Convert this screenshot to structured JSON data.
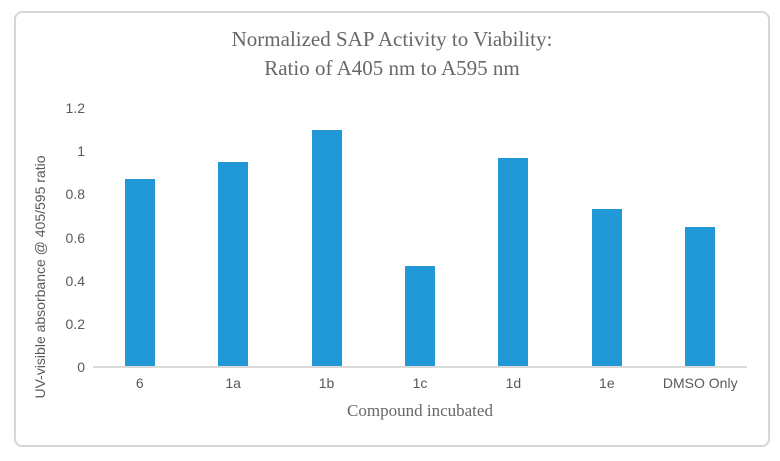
{
  "colors": {
    "bar": "#2199D6",
    "axis-line": "#d9d9d9",
    "tick-text": "#595959",
    "title-text": "#686868",
    "frame-border": "#d6d6d6",
    "background": "#ffffff"
  },
  "chart": {
    "title_line1": "Normalized SAP Activity to Viability:",
    "title_line2": "Ratio of A405 nm to A595 nm",
    "x_axis_title": "Compound incubated",
    "y_axis_title": "UV-visible absorbance @ 405/595 ratio"
  },
  "chart_data": {
    "type": "bar",
    "title": "Normalized SAP Activity to Viability: Ratio of A405 nm to A595 nm",
    "categories": [
      "6",
      "1a",
      "1b",
      "1c",
      "1d",
      "1e",
      "DMSO Only"
    ],
    "values": [
      0.87,
      0.95,
      1.1,
      0.47,
      0.97,
      0.73,
      0.65
    ],
    "xlabel": "Compound incubated",
    "ylabel": "UV-visible absorbance @ 405/595 ratio",
    "ylim": [
      0,
      1.2
    ],
    "ytick_labels": [
      "0",
      "0.2",
      "0.4",
      "0.6",
      "0.8",
      "1",
      "1.2"
    ],
    "grid": false,
    "legend": false,
    "legend_position": "none"
  }
}
